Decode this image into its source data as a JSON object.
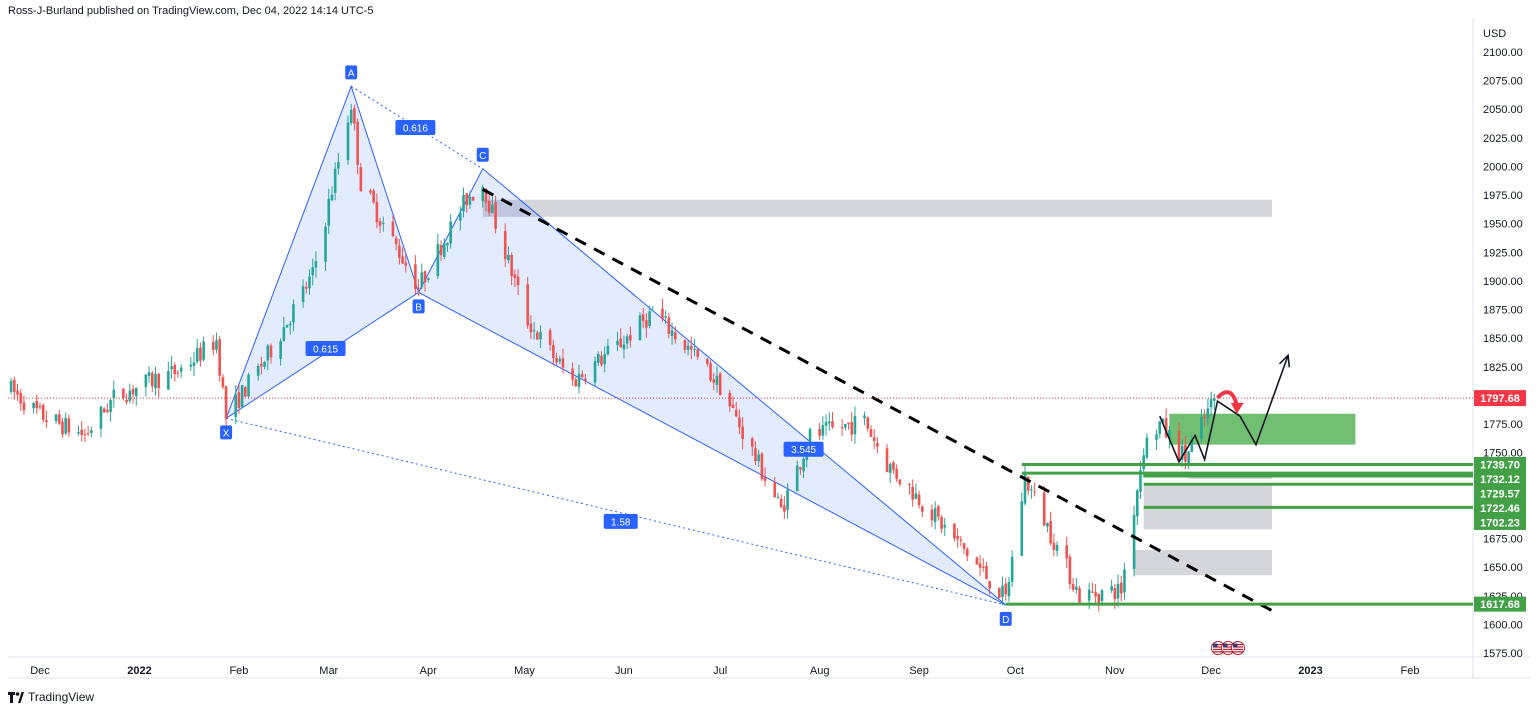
{
  "header": {
    "attribution": "Ross-J-Burland published on TradingView.com, Dec 04, 2022 14:14 UTC-5"
  },
  "footer": {
    "brand": "TradingView",
    "logo_icon": "tradingview-logo-icon"
  },
  "colors": {
    "bull": "#26a69a",
    "bear": "#ef5350",
    "pattern": "#2962ff",
    "pattern_fill": "#2962ff",
    "zone_gray": "#b2b5be",
    "zone_green": "#4caf50",
    "level_green": "#43a047",
    "price_red": "#f23645",
    "arrow_red": "#f23645",
    "trend": "#000000"
  },
  "chart_data": {
    "type": "candlestick",
    "instrument_currency": "USD",
    "ylim": [
      1568,
      2112
    ],
    "yticks": [
      1575,
      1600,
      1625,
      1650,
      1675,
      1700,
      1725,
      1750,
      1775,
      1800,
      1825,
      1850,
      1875,
      1900,
      1925,
      1950,
      1975,
      2000,
      2025,
      2050,
      2075,
      2100
    ],
    "xtick_labels": [
      "Dec",
      "2022",
      "Feb",
      "Mar",
      "Apr",
      "May",
      "Jun",
      "Jul",
      "Aug",
      "Sep",
      "Oct",
      "Nov",
      "Dec",
      "2023",
      "Feb"
    ],
    "xtick_dates": [
      "2021-12-01",
      "2022-01-01",
      "2022-02-01",
      "2022-03-01",
      "2022-04-01",
      "2022-05-01",
      "2022-06-01",
      "2022-07-01",
      "2022-08-01",
      "2022-09-01",
      "2022-10-01",
      "2022-11-01",
      "2022-12-01",
      "2023-01-01",
      "2023-02-01"
    ],
    "current_price": {
      "value": 1797.68,
      "label": "1797.68"
    },
    "levels": [
      {
        "label": "1739.70",
        "value": 1739.7,
        "start": "2022-10-03"
      },
      {
        "label": "1732.12",
        "value": 1732.12,
        "start": "2022-10-03"
      },
      {
        "label": "1729.57",
        "value": 1729.57,
        "start": "2022-11-10"
      },
      {
        "label": "1722.46",
        "value": 1722.46,
        "start": "2022-11-10"
      },
      {
        "label": "1702.23",
        "value": 1702.23,
        "start": "2022-11-10"
      },
      {
        "label": "1617.68",
        "value": 1617.68,
        "start": "2022-09-28"
      }
    ],
    "harmonic_pattern": {
      "points": [
        {
          "label": "X",
          "date": "2022-01-28",
          "price": 1780
        },
        {
          "label": "A",
          "date": "2022-03-08",
          "price": 2070
        },
        {
          "label": "B",
          "date": "2022-03-29",
          "price": 1890
        },
        {
          "label": "C",
          "date": "2022-04-18",
          "price": 1998
        },
        {
          "label": "D",
          "date": "2022-09-28",
          "price": 1617
        }
      ],
      "ratios": [
        {
          "label": "0.616",
          "date": "2022-03-28",
          "price": 2034
        },
        {
          "label": "0.615",
          "date": "2022-02-28",
          "price": 1841
        },
        {
          "label": "3.545",
          "date": "2022-07-27",
          "price": 1753
        },
        {
          "label": "1.58",
          "date": "2022-05-31",
          "price": 1690
        }
      ]
    },
    "trendline": {
      "start": {
        "date": "2022-04-18",
        "price": 1980
      },
      "end": {
        "date": "2022-12-20",
        "price": 1612
      }
    },
    "zones": [
      {
        "kind": "gray",
        "from": "2022-04-18",
        "to": "2022-12-20",
        "top": 1971,
        "bottom": 1956
      },
      {
        "kind": "green",
        "from": "2022-11-18",
        "to": "2023-01-15",
        "top": 1784,
        "bottom": 1757
      },
      {
        "kind": "gray",
        "from": "2022-11-24",
        "to": "2022-12-20",
        "top": 1733,
        "bottom": 1727
      },
      {
        "kind": "gray",
        "from": "2022-11-10",
        "to": "2022-12-20",
        "top": 1722,
        "bottom": 1683
      },
      {
        "kind": "gray",
        "from": "2022-11-07",
        "to": "2022-12-20",
        "top": 1665,
        "bottom": 1643
      }
    ],
    "projection_path": [
      {
        "date": "2022-11-15",
        "price": 1782
      },
      {
        "date": "2022-11-21",
        "price": 1742
      },
      {
        "date": "2022-11-26",
        "price": 1765
      },
      {
        "date": "2022-11-29",
        "price": 1744
      },
      {
        "date": "2022-12-03",
        "price": 1795
      },
      {
        "date": "2022-12-10",
        "price": 1782
      },
      {
        "date": "2022-12-15",
        "price": 1757
      },
      {
        "date": "2022-12-25",
        "price": 1835
      }
    ],
    "red_arrow": {
      "from": {
        "date": "2022-12-03",
        "price": 1798
      },
      "to": {
        "date": "2022-12-09",
        "price": 1790
      }
    },
    "event_icons": [
      "us-flag-icon",
      "us-flag-icon",
      "us-flag-icon"
    ],
    "series": [
      {
        "name": "",
        "anchors": [
          [
            "2021-11-22",
            1805
          ],
          [
            "2021-12-01",
            1783
          ],
          [
            "2021-12-15",
            1765
          ],
          [
            "2021-12-24",
            1798
          ],
          [
            "2022-01-04",
            1812
          ],
          [
            "2022-01-13",
            1821
          ],
          [
            "2022-01-25",
            1848
          ],
          [
            "2022-01-28",
            1781
          ],
          [
            "2022-02-10",
            1835
          ],
          [
            "2022-02-24",
            1905
          ],
          [
            "2022-03-08",
            2055
          ],
          [
            "2022-03-11",
            1985
          ],
          [
            "2022-03-29",
            1895
          ],
          [
            "2022-04-13",
            1972
          ],
          [
            "2022-04-18",
            1985
          ],
          [
            "2022-05-02",
            1865
          ],
          [
            "2022-05-16",
            1812
          ],
          [
            "2022-06-01",
            1848
          ],
          [
            "2022-06-10",
            1873
          ],
          [
            "2022-06-22",
            1838
          ],
          [
            "2022-07-01",
            1808
          ],
          [
            "2022-07-20",
            1700
          ],
          [
            "2022-07-29",
            1764
          ],
          [
            "2022-08-15",
            1778
          ],
          [
            "2022-08-22",
            1740
          ],
          [
            "2022-09-01",
            1710
          ],
          [
            "2022-09-15",
            1665
          ],
          [
            "2022-09-28",
            1622
          ],
          [
            "2022-10-04",
            1728
          ],
          [
            "2022-10-21",
            1625
          ],
          [
            "2022-11-03",
            1630
          ],
          [
            "2022-11-10",
            1755
          ],
          [
            "2022-11-15",
            1775
          ],
          [
            "2022-11-23",
            1745
          ],
          [
            "2022-12-02",
            1797
          ]
        ]
      }
    ]
  }
}
